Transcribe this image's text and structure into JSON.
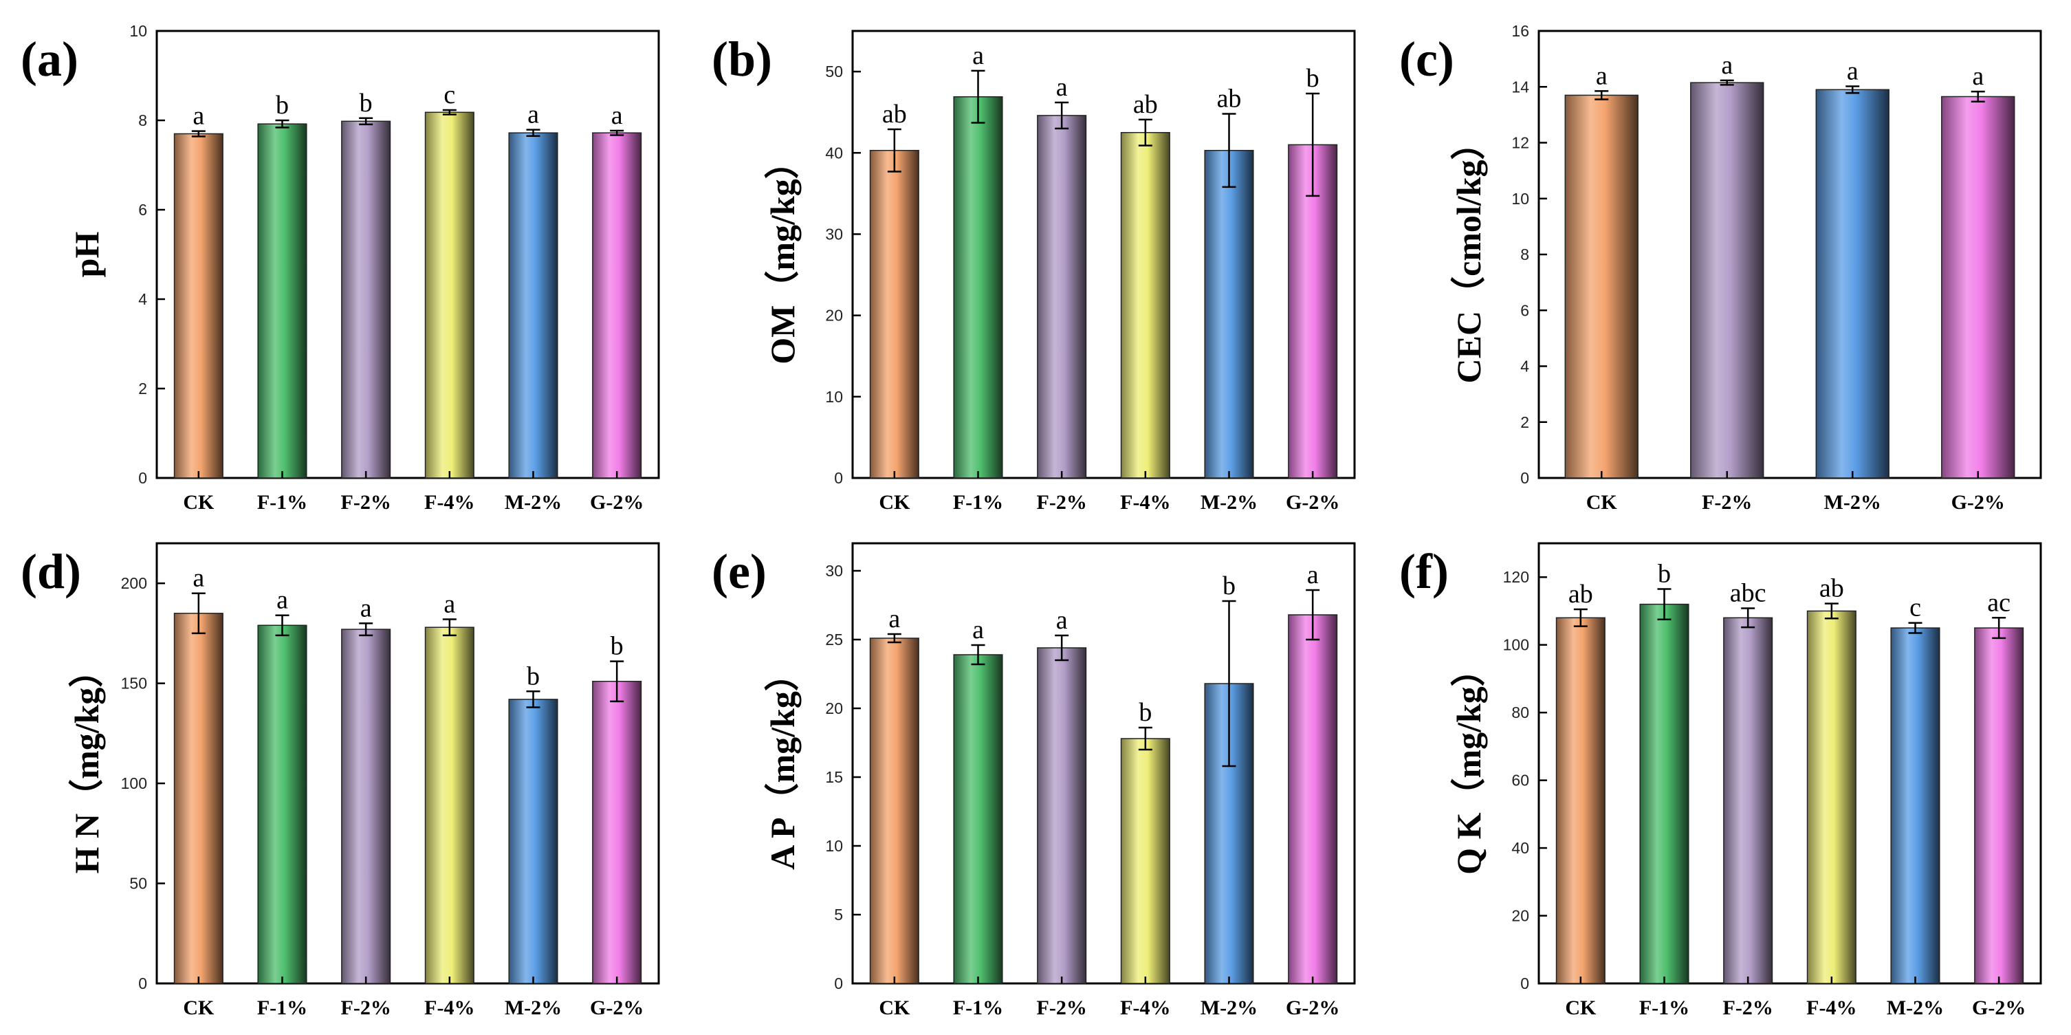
{
  "colors": {
    "CK": "#f4a46e",
    "F-1%": "#4fbf6e",
    "F-2%": "#b39ec8",
    "F-4%": "#eeee78",
    "M-2%": "#5b9ee6",
    "G-2%": "#f27ee8"
  },
  "chart_data": [
    {
      "type": "bar",
      "panel": "(a)",
      "ylabel": "pH",
      "ylim": [
        0,
        10
      ],
      "yticks": [
        0,
        2,
        4,
        6,
        8,
        10
      ],
      "categories": [
        "CK",
        "F-1%",
        "F-2%",
        "F-4%",
        "M-2%",
        "G-2%"
      ],
      "values": [
        7.7,
        7.92,
        7.98,
        8.18,
        7.72,
        7.72
      ],
      "errors": [
        0.06,
        0.08,
        0.07,
        0.05,
        0.07,
        0.05
      ],
      "letters": [
        "a",
        "b",
        "b",
        "c",
        "a",
        "a"
      ]
    },
    {
      "type": "bar",
      "panel": "(b)",
      "ylabel": "OM（mg/kg）",
      "ylim": [
        0,
        55
      ],
      "yticks": [
        0,
        10,
        20,
        30,
        40,
        50
      ],
      "categories": [
        "CK",
        "F-1%",
        "F-2%",
        "F-4%",
        "M-2%",
        "G-2%"
      ],
      "values": [
        40.3,
        46.9,
        44.6,
        42.5,
        40.3,
        41.0
      ],
      "errors": [
        2.6,
        3.2,
        1.6,
        1.6,
        4.5,
        6.3
      ],
      "letters": [
        "ab",
        "a",
        "a",
        "ab",
        "ab",
        "b"
      ]
    },
    {
      "type": "bar",
      "panel": "(c)",
      "ylabel": "CEC（cmol/kg）",
      "ylim": [
        0,
        16
      ],
      "yticks": [
        0,
        2,
        4,
        6,
        8,
        10,
        12,
        14,
        16
      ],
      "categories": [
        "CK",
        "F-2%",
        "M-2%",
        "G-2%"
      ],
      "values": [
        13.7,
        14.15,
        13.9,
        13.65
      ],
      "errors": [
        0.15,
        0.08,
        0.12,
        0.18
      ],
      "letters": [
        "a",
        "a",
        "a",
        "a"
      ]
    },
    {
      "type": "bar",
      "panel": "(d)",
      "ylabel": "H N（mg/kg）",
      "ylim": [
        0,
        220
      ],
      "yticks": [
        0,
        50,
        100,
        150,
        200
      ],
      "categories": [
        "CK",
        "F-1%",
        "F-2%",
        "F-4%",
        "M-2%",
        "G-2%"
      ],
      "values": [
        185,
        179,
        177,
        178,
        142,
        151
      ],
      "errors": [
        10,
        5,
        3,
        4,
        4,
        10
      ],
      "letters": [
        "a",
        "a",
        "a",
        "a",
        "b",
        "b"
      ]
    },
    {
      "type": "bar",
      "panel": "(e)",
      "ylabel": "A P（mg/kg）",
      "ylim": [
        0,
        32
      ],
      "yticks": [
        0,
        5,
        10,
        15,
        20,
        25,
        30
      ],
      "categories": [
        "CK",
        "F-1%",
        "F-2%",
        "F-4%",
        "M-2%",
        "G-2%"
      ],
      "values": [
        25.1,
        23.9,
        24.4,
        17.8,
        21.8,
        26.8
      ],
      "errors": [
        0.3,
        0.7,
        0.9,
        0.8,
        6.0,
        1.8
      ],
      "letters": [
        "a",
        "a",
        "a",
        "b",
        "b",
        "a"
      ]
    },
    {
      "type": "bar",
      "panel": "(f)",
      "ylabel": "Q K（mg/kg）",
      "ylim": [
        0,
        130
      ],
      "yticks": [
        0,
        20,
        40,
        60,
        80,
        100,
        120
      ],
      "categories": [
        "CK",
        "F-1%",
        "F-2%",
        "F-4%",
        "M-2%",
        "G-2%"
      ],
      "values": [
        108,
        112,
        108,
        110,
        105,
        105
      ],
      "errors": [
        2.5,
        4.5,
        2.8,
        2.2,
        1.5,
        3.0
      ],
      "letters": [
        "ab",
        "b",
        "abc",
        "ab",
        "c",
        "ac"
      ]
    }
  ]
}
